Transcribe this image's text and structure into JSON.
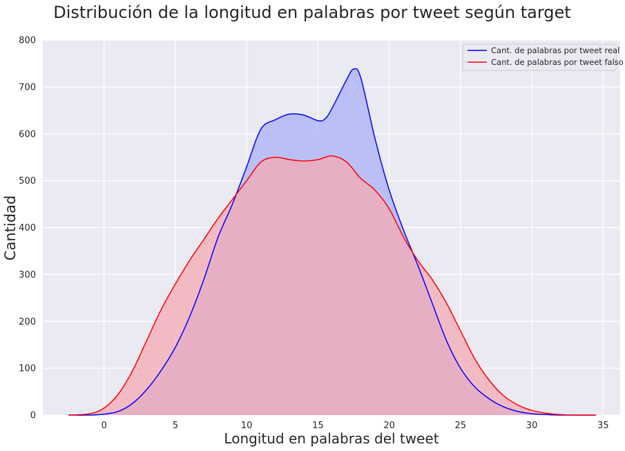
{
  "chart_data": {
    "type": "area",
    "title": "Distribución de la longitud en palabras por tweet según target",
    "xlabel": "Longitud en palabras del tweet",
    "ylabel": "Cantidad",
    "xlim": [
      -4.3,
      36.2
    ],
    "ylim": [
      0,
      800
    ],
    "xticks": [
      0,
      5,
      10,
      15,
      20,
      25,
      30,
      35
    ],
    "yticks": [
      0,
      100,
      200,
      300,
      400,
      500,
      600,
      700,
      800
    ],
    "grid": true,
    "legend_position": "top-right",
    "series": [
      {
        "name": "Cant. de palabras por tweet real",
        "color": "#0000ff",
        "fill": "#aab0f7",
        "x": [
          -2.5,
          -1,
          0,
          1,
          2,
          3,
          4,
          5,
          6,
          7,
          8,
          9,
          10,
          11,
          12,
          13,
          14,
          15,
          15.5,
          16,
          17,
          17.5,
          18,
          19,
          20,
          21,
          22,
          23,
          24,
          25,
          26,
          27,
          28,
          29,
          30,
          31,
          32,
          33,
          34.5
        ],
        "y": [
          0,
          0,
          2,
          8,
          25,
          55,
          95,
          145,
          210,
          290,
          380,
          450,
          530,
          610,
          630,
          642,
          640,
          628,
          632,
          655,
          715,
          738,
          720,
          590,
          480,
          395,
          320,
          240,
          160,
          100,
          60,
          35,
          18,
          8,
          3,
          1,
          0,
          0,
          0
        ]
      },
      {
        "name": "Cant. de palabras por tweet falso",
        "color": "#ff0000",
        "fill": "#f4a9b3",
        "x": [
          -2.5,
          -1,
          0,
          1,
          2,
          3,
          4,
          5,
          6,
          7,
          8,
          9,
          10,
          11,
          12,
          13,
          14,
          15,
          16,
          17,
          18,
          19,
          20,
          21,
          22,
          23,
          24,
          25,
          26,
          27,
          28,
          29,
          30,
          31,
          32,
          33,
          34.5
        ],
        "y": [
          0,
          3,
          15,
          45,
          95,
          160,
          225,
          280,
          330,
          375,
          420,
          460,
          500,
          540,
          550,
          545,
          542,
          545,
          553,
          540,
          505,
          480,
          440,
          380,
          330,
          290,
          240,
          180,
          120,
          75,
          42,
          22,
          10,
          4,
          1,
          0,
          0
        ]
      }
    ]
  }
}
